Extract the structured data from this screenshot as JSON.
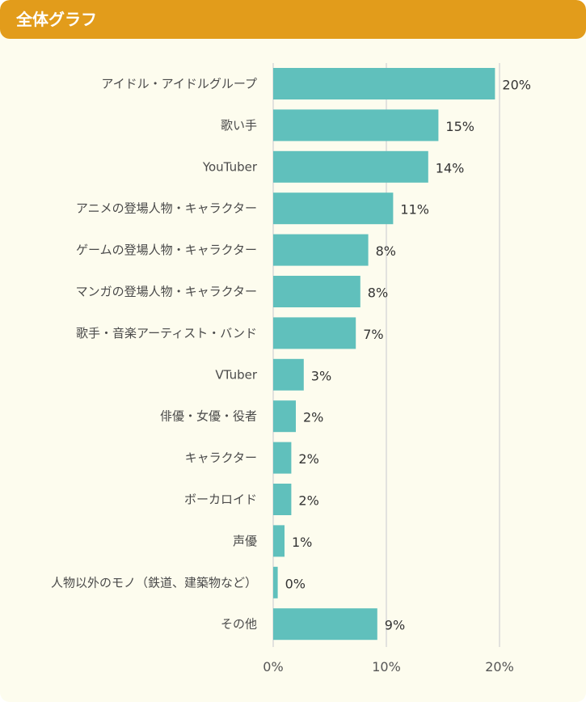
{
  "title": "全体グラフ",
  "colors": {
    "header": "#e29c1b",
    "bar": "#60c0bc",
    "background": "#fdfcee",
    "grid": "#d9d9d9"
  },
  "chart_data": {
    "type": "bar",
    "orientation": "horizontal",
    "categories": [
      "アイドル・アイドルグループ",
      "歌い手",
      "YouTuber",
      "アニメの登場人物・キャラクター",
      "ゲームの登場人物・キャラクター",
      "マンガの登場人物・キャラクター",
      "歌手・音楽アーティスト・バンド",
      "VTuber",
      "俳優・女優・役者",
      "キャラクター",
      "ボーカロイド",
      "声優",
      "人物以外のモノ（鉄道、建築物など）",
      "その他"
    ],
    "values": [
      19.6,
      14.6,
      13.7,
      10.6,
      8.4,
      7.7,
      7.3,
      2.7,
      2.0,
      1.6,
      1.6,
      1.0,
      0.4,
      9.2
    ],
    "value_labels": [
      "20%",
      "15%",
      "14%",
      "11%",
      "8%",
      "8%",
      "7%",
      "3%",
      "2%",
      "2%",
      "2%",
      "1%",
      "0%",
      "9%"
    ],
    "xlim": [
      0,
      20
    ],
    "xticks": [
      0,
      10,
      20
    ],
    "xtick_labels": [
      "0%",
      "10%",
      "20%"
    ],
    "grid": true
  }
}
